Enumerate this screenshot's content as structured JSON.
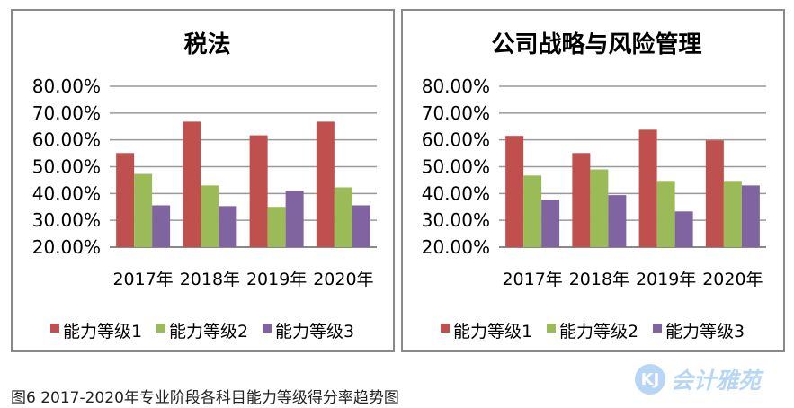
{
  "chart_data": [
    {
      "type": "bar",
      "title": "税法",
      "categories": [
        "2017年",
        "2018年",
        "2019年",
        "2020年"
      ],
      "ylim": [
        0.2,
        0.8
      ],
      "yticks": [
        "20.00%",
        "30.00%",
        "40.00%",
        "50.00%",
        "60.00%",
        "70.00%",
        "80.00%"
      ],
      "grid": true,
      "legend": "bottom",
      "series": [
        {
          "name": "能力等级1",
          "color": "#c0504d",
          "values": [
            0.551,
            0.668,
            0.617,
            0.668
          ]
        },
        {
          "name": "能力等级2",
          "color": "#9bbb59",
          "values": [
            0.473,
            0.43,
            0.35,
            0.423
          ]
        },
        {
          "name": "能力等级3",
          "color": "#8064a2",
          "values": [
            0.356,
            0.353,
            0.41,
            0.356
          ]
        }
      ]
    },
    {
      "type": "bar",
      "title": "公司战略与风险管理",
      "categories": [
        "2017年",
        "2018年",
        "2019年",
        "2020年"
      ],
      "ylim": [
        0.2,
        0.8
      ],
      "yticks": [
        "20.00%",
        "30.00%",
        "40.00%",
        "50.00%",
        "60.00%",
        "70.00%",
        "80.00%"
      ],
      "grid": true,
      "legend": "bottom",
      "series": [
        {
          "name": "能力等级1",
          "color": "#c0504d",
          "values": [
            0.615,
            0.551,
            0.638,
            0.598
          ]
        },
        {
          "name": "能力等级2",
          "color": "#9bbb59",
          "values": [
            0.467,
            0.49,
            0.447,
            0.447
          ]
        },
        {
          "name": "能力等级3",
          "color": "#8064a2",
          "values": [
            0.377,
            0.394,
            0.333,
            0.43
          ]
        }
      ]
    }
  ],
  "caption": "图6  2017-2020年专业阶段各科目能力等级得分率趋势图",
  "watermark": {
    "logo": "KJ",
    "text": "会计雅苑"
  }
}
